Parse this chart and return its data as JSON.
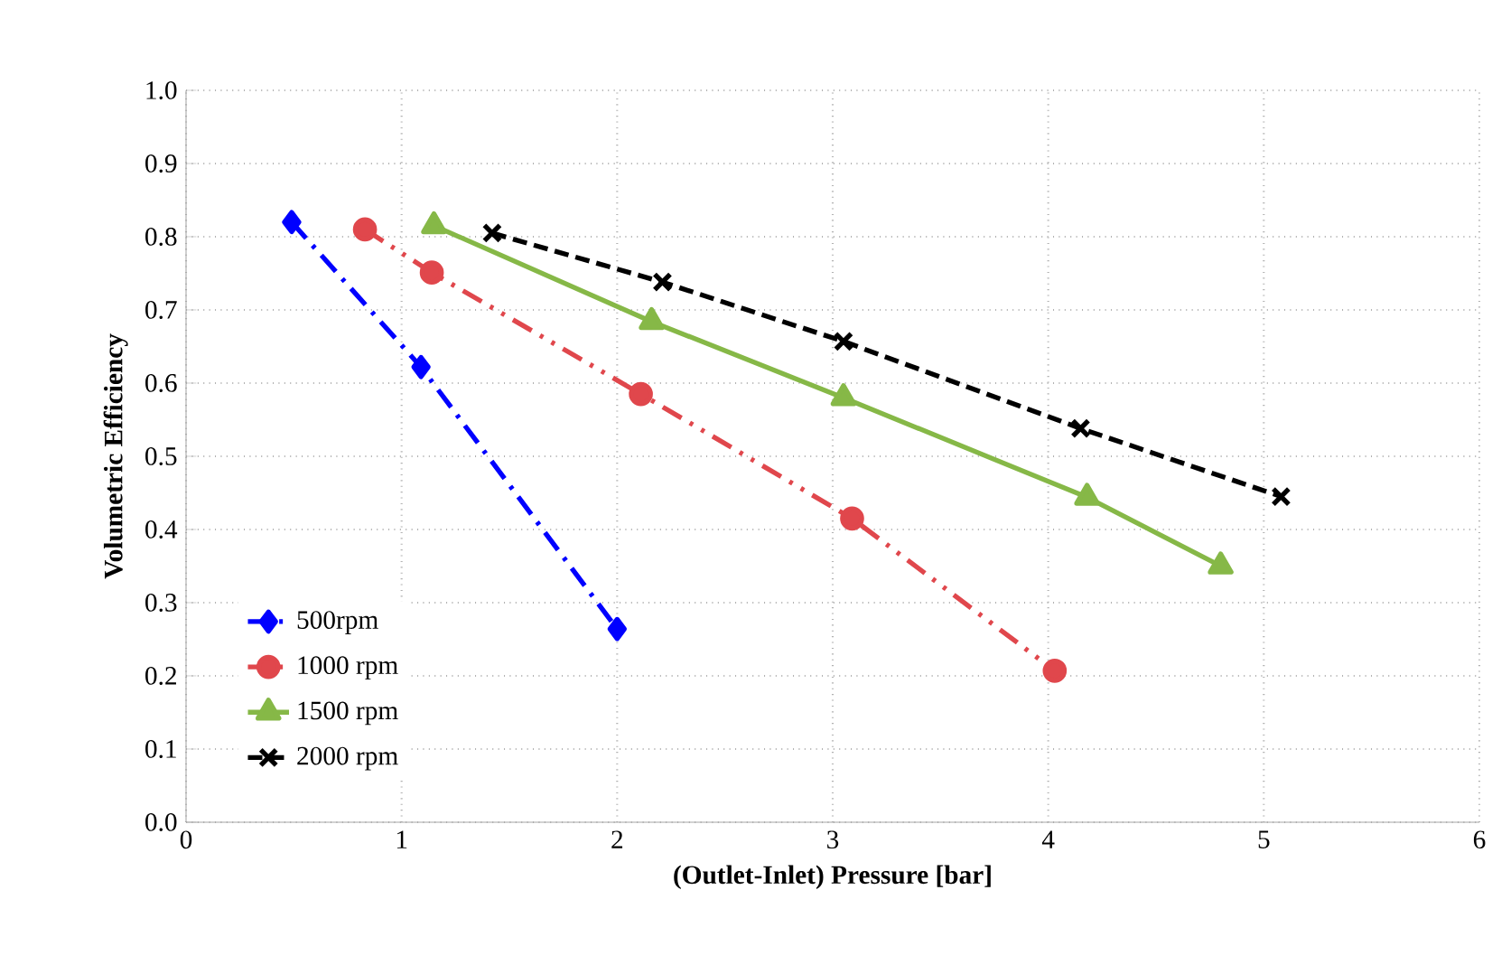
{
  "chart_data": {
    "type": "line",
    "xlabel": "(Outlet-Inlet) Pressure [bar]",
    "ylabel": "Volumetric Efficiency",
    "xlim": [
      0,
      6
    ],
    "xticks": [
      0,
      1,
      2,
      3,
      4,
      5,
      6
    ],
    "ylim": [
      0,
      1
    ],
    "yticks": [
      {
        "value": 0,
        "label": "0.0"
      },
      {
        "value": 0.1,
        "label": "0.1"
      },
      {
        "value": 0.2,
        "label": "0.2"
      },
      {
        "value": 0.3,
        "label": "0.3"
      },
      {
        "value": 0.4,
        "label": "0.4"
      },
      {
        "value": 0.5,
        "label": "0.5"
      },
      {
        "value": 0.6,
        "label": "0.6"
      },
      {
        "value": 0.7,
        "label": "0.7"
      },
      {
        "value": 0.8,
        "label": "0.8"
      },
      {
        "value": 0.9,
        "label": "0.9"
      },
      {
        "value": 1,
        "label": "1.0"
      }
    ],
    "grid": true,
    "legend": "bottom left",
    "series": [
      {
        "name": "500rpm",
        "color": "#0000ff",
        "marker": "diamond",
        "line_style": "dashdot",
        "x": [
          0.49,
          1.09,
          2.0
        ],
        "values": [
          0.82,
          0.622,
          0.264
        ]
      },
      {
        "name": "1000 rpm",
        "color": "#e0474c",
        "marker": "circle",
        "line_style": "dashdotdot",
        "x": [
          0.83,
          1.14,
          2.11,
          3.09,
          4.03
        ],
        "values": [
          0.81,
          0.751,
          0.585,
          0.415,
          0.207
        ]
      },
      {
        "name": "1500 rpm",
        "color": "#86b847",
        "marker": "triangle",
        "line_style": "solid",
        "x": [
          1.15,
          2.16,
          3.05,
          4.18,
          4.8
        ],
        "values": [
          0.815,
          0.684,
          0.58,
          0.444,
          0.35
        ]
      },
      {
        "name": "2000 rpm",
        "color": "#000000",
        "marker": "cross",
        "line_style": "dashed",
        "x": [
          1.42,
          2.21,
          3.05,
          4.15,
          5.08
        ],
        "values": [
          0.805,
          0.738,
          0.657,
          0.538,
          0.445
        ]
      }
    ]
  }
}
